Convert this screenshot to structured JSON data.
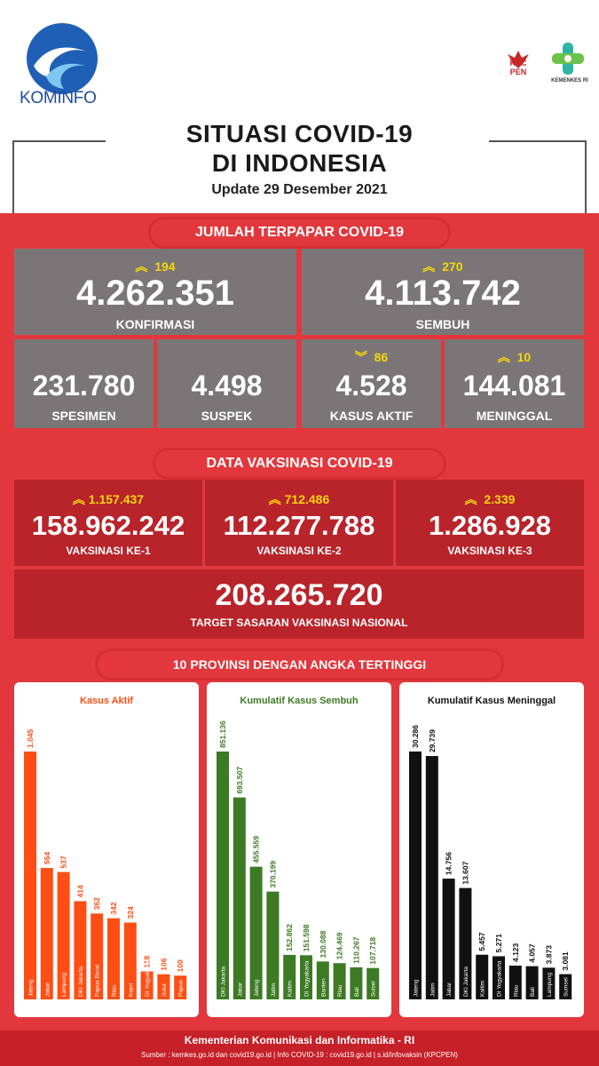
{
  "header": {
    "logo_text": "KOMINFO",
    "kpc_text": "KPC\nPEN",
    "kemenkes_text": "KEMENKES RI",
    "title_line1": "SITUASI COVID-19",
    "title_line2": "DI INDONESIA",
    "update": "Update 29 Desember 2021"
  },
  "terpapar": {
    "section_title": "JUMLAH TERPAPAR COVID-19",
    "konfirmasi": {
      "delta": "194",
      "value": "4.262.351",
      "label": "KONFIRMASI",
      "trend": "up"
    },
    "sembuh": {
      "delta": "270",
      "value": "4.113.742",
      "label": "SEMBUH",
      "trend": "up"
    },
    "spesimen": {
      "value": "231.780",
      "label": "SPESIMEN"
    },
    "suspek": {
      "value": "4.498",
      "label": "SUSPEK"
    },
    "kasus_aktif": {
      "delta": "86",
      "value": "4.528",
      "label": "KASUS AKTIF",
      "trend": "down"
    },
    "meninggal": {
      "delta": "10",
      "value": "144.081",
      "label": "MENINGGAL",
      "trend": "up"
    }
  },
  "vaksinasi": {
    "section_title": "DATA VAKSINASI COVID-19",
    "ke1": {
      "delta": "1.157.437",
      "value": "158.962.242",
      "label": "VAKSINASI KE-1"
    },
    "ke2": {
      "delta": "712.486",
      "value": "112.277.788",
      "label": "VAKSINASI KE-2"
    },
    "ke3": {
      "delta": "2.339",
      "value": "1.286.928",
      "label": "VAKSINASI KE-3"
    },
    "target": {
      "value": "208.265.720",
      "label": "TARGET SASARAN VAKSINASI NASIONAL"
    }
  },
  "provinsi": {
    "section_title": "10 PROVINSI DENGAN ANGKA TERTINGGI"
  },
  "colors": {
    "red": "#e2383d",
    "gray": "#7a7677",
    "yellow": "#f5d60b",
    "orange": "#ff4e14",
    "green": "#3d7a24",
    "black": "#111111"
  },
  "chart_data": [
    {
      "type": "bar",
      "title": "Kasus Aktif",
      "categories": [
        "Jateng",
        "Jabar",
        "Lampung",
        "DKI Jakarta",
        "Papua Barat",
        "Riau",
        "Kepri",
        "DI Yogyakarta",
        "Sulut",
        "Papua"
      ],
      "values": [
        1045,
        554,
        537,
        414,
        362,
        342,
        324,
        118,
        106,
        100
      ],
      "value_labels": [
        "1.045",
        "554",
        "537",
        "414",
        "362",
        "342",
        "324",
        "118",
        "106",
        "100"
      ],
      "color": "#ff4e14"
    },
    {
      "type": "bar",
      "title": "Kumulatif Kasus Sembuh",
      "categories": [
        "DKI Jakarta",
        "Jabar",
        "Jateng",
        "Jatim",
        "Kaltim",
        "DI Yogyakarta",
        "Banten",
        "Riau",
        "Bali",
        "Sulsel"
      ],
      "values": [
        851136,
        693507,
        455559,
        370199,
        152862,
        151598,
        130088,
        124469,
        110267,
        107718
      ],
      "value_labels": [
        "851.136",
        "693.507",
        "455.559",
        "370.199",
        "152.862",
        "151.598",
        "130.088",
        "124.469",
        "110.267",
        "107.718"
      ],
      "color": "#3d7a24"
    },
    {
      "type": "bar",
      "title": "Kumulatif Kasus Meninggal",
      "categories": [
        "Jateng",
        "Jatim",
        "Jabar",
        "DKI Jakarta",
        "Kaltim",
        "DI Yogyakarta",
        "Riau",
        "Bali",
        "Lampung",
        "Sumsel"
      ],
      "values": [
        30286,
        29739,
        14756,
        13607,
        5457,
        5271,
        4123,
        4057,
        3873,
        3081
      ],
      "value_labels": [
        "30.286",
        "29.739",
        "14.756",
        "13.607",
        "5.457",
        "5.271",
        "4.123",
        "4.057",
        "3.873",
        "3.081"
      ],
      "color": "#111111"
    }
  ],
  "footer": {
    "line1": "Kementerian Komunikasi dan Informatika - RI",
    "line2": "Sumber : kemkes.go.id dan covid19.go.id | Info COVID-19 : covid19.go.id | s.id/infovaksin (KPCPEN)"
  }
}
